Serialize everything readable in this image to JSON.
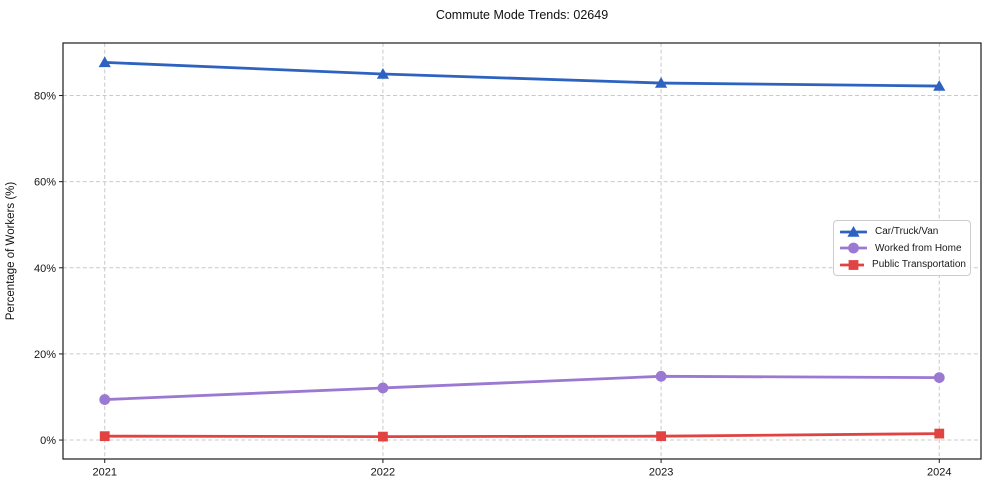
{
  "figure": {
    "background": "#ffffff"
  },
  "chart_data": {
    "type": "line",
    "title": "Commute Mode Trends: 02649",
    "xlabel": "",
    "ylabel": "Percentage of Workers (%)",
    "categories": [
      "2021",
      "2022",
      "2023",
      "2024"
    ],
    "x": [
      2021,
      2022,
      2023,
      2024
    ],
    "series": [
      {
        "name": "Car/Truck/Van",
        "color": "#2e62c1",
        "marker": "triangle-up",
        "values": [
          87.7,
          85.0,
          82.9,
          82.2
        ]
      },
      {
        "name": "Worked from Home",
        "color": "#9b78d2",
        "marker": "circle",
        "values": [
          9.4,
          12.1,
          14.8,
          14.5
        ]
      },
      {
        "name": "Public Transportation",
        "color": "#e14343",
        "marker": "square",
        "values": [
          0.9,
          0.8,
          0.9,
          1.5
        ]
      }
    ],
    "xlim": [
      2020.85,
      2024.15
    ],
    "ylim": [
      -4.4,
      92.2
    ],
    "yticks": [
      0,
      20,
      40,
      60,
      80
    ],
    "ytick_labels": [
      "0%",
      "20%",
      "40%",
      "60%",
      "80%"
    ],
    "grid": true,
    "grid_color": "#c9c9c9",
    "spine_color": "#1c1c1c",
    "text_color": "#141414",
    "legend_position": "center-right"
  }
}
